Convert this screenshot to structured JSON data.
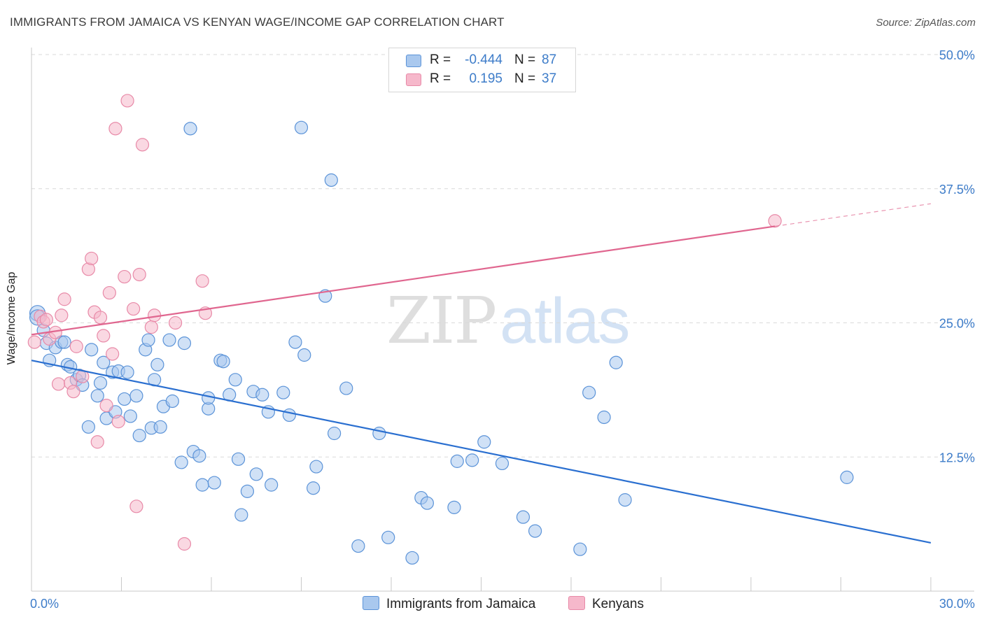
{
  "header": {
    "title": "IMMIGRANTS FROM JAMAICA VS KENYAN WAGE/INCOME GAP CORRELATION CHART",
    "source": "Source: ZipAtlas.com"
  },
  "watermark": {
    "zip": "ZIP",
    "atlas": "atlas"
  },
  "legend": {
    "rows": [
      {
        "r_label": "R =",
        "r_value": "-0.444",
        "n_label": "N =",
        "n_value": "87",
        "color": "#a9c8ee"
      },
      {
        "r_label": "R =",
        "r_value": "0.195",
        "n_label": "N =",
        "n_value": "37",
        "color": "#f6b8cb"
      }
    ]
  },
  "bottom_legend": {
    "items": [
      {
        "label": "Immigrants from Jamaica",
        "color": "#a9c8ee"
      },
      {
        "label": "Kenyans",
        "color": "#f6b8cb"
      }
    ]
  },
  "colors": {
    "blue_fill": "#a9c8ee",
    "blue_stroke": "#5b93d8",
    "blue_line": "#2a6fd0",
    "pink_fill": "#f6b8cb",
    "pink_stroke": "#e88aa8",
    "pink_line": "#e0668f",
    "tick_label": "#3d7cc9",
    "grid": "#d9d9d9"
  },
  "chart_data": {
    "type": "scatter",
    "title": "IMMIGRANTS FROM JAMAICA VS KENYAN WAGE/INCOME GAP CORRELATION CHART",
    "xlabel": "",
    "ylabel": "Wage/Income Gap",
    "xlim": [
      0,
      30
    ],
    "ylim": [
      0,
      50
    ],
    "x_tick_labels": [
      "0.0%",
      "30.0%"
    ],
    "y_tick_labels": [
      "12.5%",
      "25.0%",
      "37.5%",
      "50.0%"
    ],
    "y_ticks": [
      12.5,
      25.0,
      37.5,
      50.0
    ],
    "grid": "horizontal dashed",
    "legend_position": "top-center",
    "series": [
      {
        "name": "Immigrants from Jamaica",
        "r": -0.444,
        "n": 87,
        "trend": {
          "x": [
            0,
            30
          ],
          "y": [
            21.5,
            4.5
          ]
        },
        "points": [
          [
            0.2,
            25.9
          ],
          [
            0.2,
            25.5
          ],
          [
            0.4,
            24.3
          ],
          [
            0.5,
            23.1
          ],
          [
            0.6,
            21.5
          ],
          [
            0.8,
            22.7
          ],
          [
            1.0,
            23.2
          ],
          [
            1.2,
            21.1
          ],
          [
            1.3,
            20.9
          ],
          [
            1.5,
            19.7
          ],
          [
            1.6,
            20.1
          ],
          [
            1.7,
            19.2
          ],
          [
            1.9,
            15.3
          ],
          [
            2.0,
            22.5
          ],
          [
            2.2,
            18.2
          ],
          [
            2.3,
            19.4
          ],
          [
            2.4,
            21.3
          ],
          [
            2.5,
            16.1
          ],
          [
            2.7,
            20.4
          ],
          [
            2.8,
            16.7
          ],
          [
            2.9,
            20.5
          ],
          [
            3.1,
            17.9
          ],
          [
            3.2,
            20.4
          ],
          [
            3.3,
            16.3
          ],
          [
            3.5,
            18.2
          ],
          [
            3.6,
            14.5
          ],
          [
            3.8,
            22.5
          ],
          [
            3.9,
            23.4
          ],
          [
            4.0,
            15.2
          ],
          [
            4.1,
            19.7
          ],
          [
            4.2,
            21.1
          ],
          [
            4.3,
            15.3
          ],
          [
            4.4,
            17.2
          ],
          [
            4.6,
            23.4
          ],
          [
            4.7,
            17.7
          ],
          [
            5.0,
            12.0
          ],
          [
            5.1,
            23.1
          ],
          [
            5.3,
            43.1
          ],
          [
            5.4,
            13.0
          ],
          [
            5.6,
            12.6
          ],
          [
            5.7,
            9.9
          ],
          [
            5.9,
            17.0
          ],
          [
            5.9,
            18.0
          ],
          [
            6.1,
            10.1
          ],
          [
            6.3,
            21.5
          ],
          [
            6.4,
            21.4
          ],
          [
            6.6,
            18.3
          ],
          [
            6.8,
            19.7
          ],
          [
            6.9,
            12.3
          ],
          [
            7.0,
            7.1
          ],
          [
            7.2,
            9.3
          ],
          [
            7.4,
            18.6
          ],
          [
            7.5,
            10.9
          ],
          [
            7.7,
            18.3
          ],
          [
            7.9,
            16.7
          ],
          [
            8.0,
            9.9
          ],
          [
            8.4,
            18.5
          ],
          [
            8.6,
            16.4
          ],
          [
            8.8,
            23.2
          ],
          [
            9.0,
            43.2
          ],
          [
            9.1,
            22.0
          ],
          [
            9.4,
            9.6
          ],
          [
            9.5,
            11.6
          ],
          [
            9.8,
            27.5
          ],
          [
            10.0,
            38.3
          ],
          [
            10.1,
            14.7
          ],
          [
            10.5,
            18.9
          ],
          [
            10.9,
            4.2
          ],
          [
            11.6,
            14.7
          ],
          [
            11.9,
            5.0
          ],
          [
            12.7,
            3.1
          ],
          [
            13.0,
            8.7
          ],
          [
            13.2,
            8.2
          ],
          [
            14.1,
            7.8
          ],
          [
            14.2,
            12.1
          ],
          [
            14.7,
            12.2
          ],
          [
            15.1,
            13.9
          ],
          [
            15.7,
            11.9
          ],
          [
            16.4,
            6.9
          ],
          [
            16.8,
            5.6
          ],
          [
            18.3,
            3.9
          ],
          [
            18.6,
            18.5
          ],
          [
            19.1,
            16.2
          ],
          [
            19.5,
            21.3
          ],
          [
            19.8,
            8.5
          ],
          [
            27.2,
            10.6
          ],
          [
            1.1,
            23.2
          ]
        ]
      },
      {
        "name": "Kenyans",
        "r": 0.195,
        "n": 37,
        "trend": {
          "x": [
            0,
            24.8
          ],
          "y": [
            23.9,
            34.0
          ],
          "dashed_to": {
            "x": 30,
            "y": 36.1
          }
        },
        "points": [
          [
            0.1,
            23.2
          ],
          [
            0.3,
            25.6
          ],
          [
            0.4,
            25.1
          ],
          [
            0.5,
            25.3
          ],
          [
            0.6,
            23.5
          ],
          [
            0.8,
            24.1
          ],
          [
            0.9,
            19.3
          ],
          [
            1.0,
            25.7
          ],
          [
            1.1,
            27.2
          ],
          [
            1.3,
            19.4
          ],
          [
            1.4,
            18.6
          ],
          [
            1.5,
            22.8
          ],
          [
            1.7,
            20.0
          ],
          [
            1.9,
            30.0
          ],
          [
            2.0,
            31.0
          ],
          [
            2.1,
            26.0
          ],
          [
            2.2,
            13.9
          ],
          [
            2.3,
            25.5
          ],
          [
            2.4,
            23.8
          ],
          [
            2.5,
            17.3
          ],
          [
            2.6,
            27.8
          ],
          [
            2.7,
            22.1
          ],
          [
            2.8,
            43.1
          ],
          [
            2.9,
            15.8
          ],
          [
            3.1,
            29.3
          ],
          [
            3.2,
            45.7
          ],
          [
            3.4,
            26.3
          ],
          [
            3.5,
            7.9
          ],
          [
            3.6,
            29.5
          ],
          [
            3.7,
            41.6
          ],
          [
            4.0,
            24.6
          ],
          [
            4.1,
            25.7
          ],
          [
            4.8,
            25.0
          ],
          [
            5.1,
            4.4
          ],
          [
            5.7,
            28.9
          ],
          [
            5.8,
            25.9
          ],
          [
            24.8,
            34.5
          ]
        ]
      }
    ]
  }
}
